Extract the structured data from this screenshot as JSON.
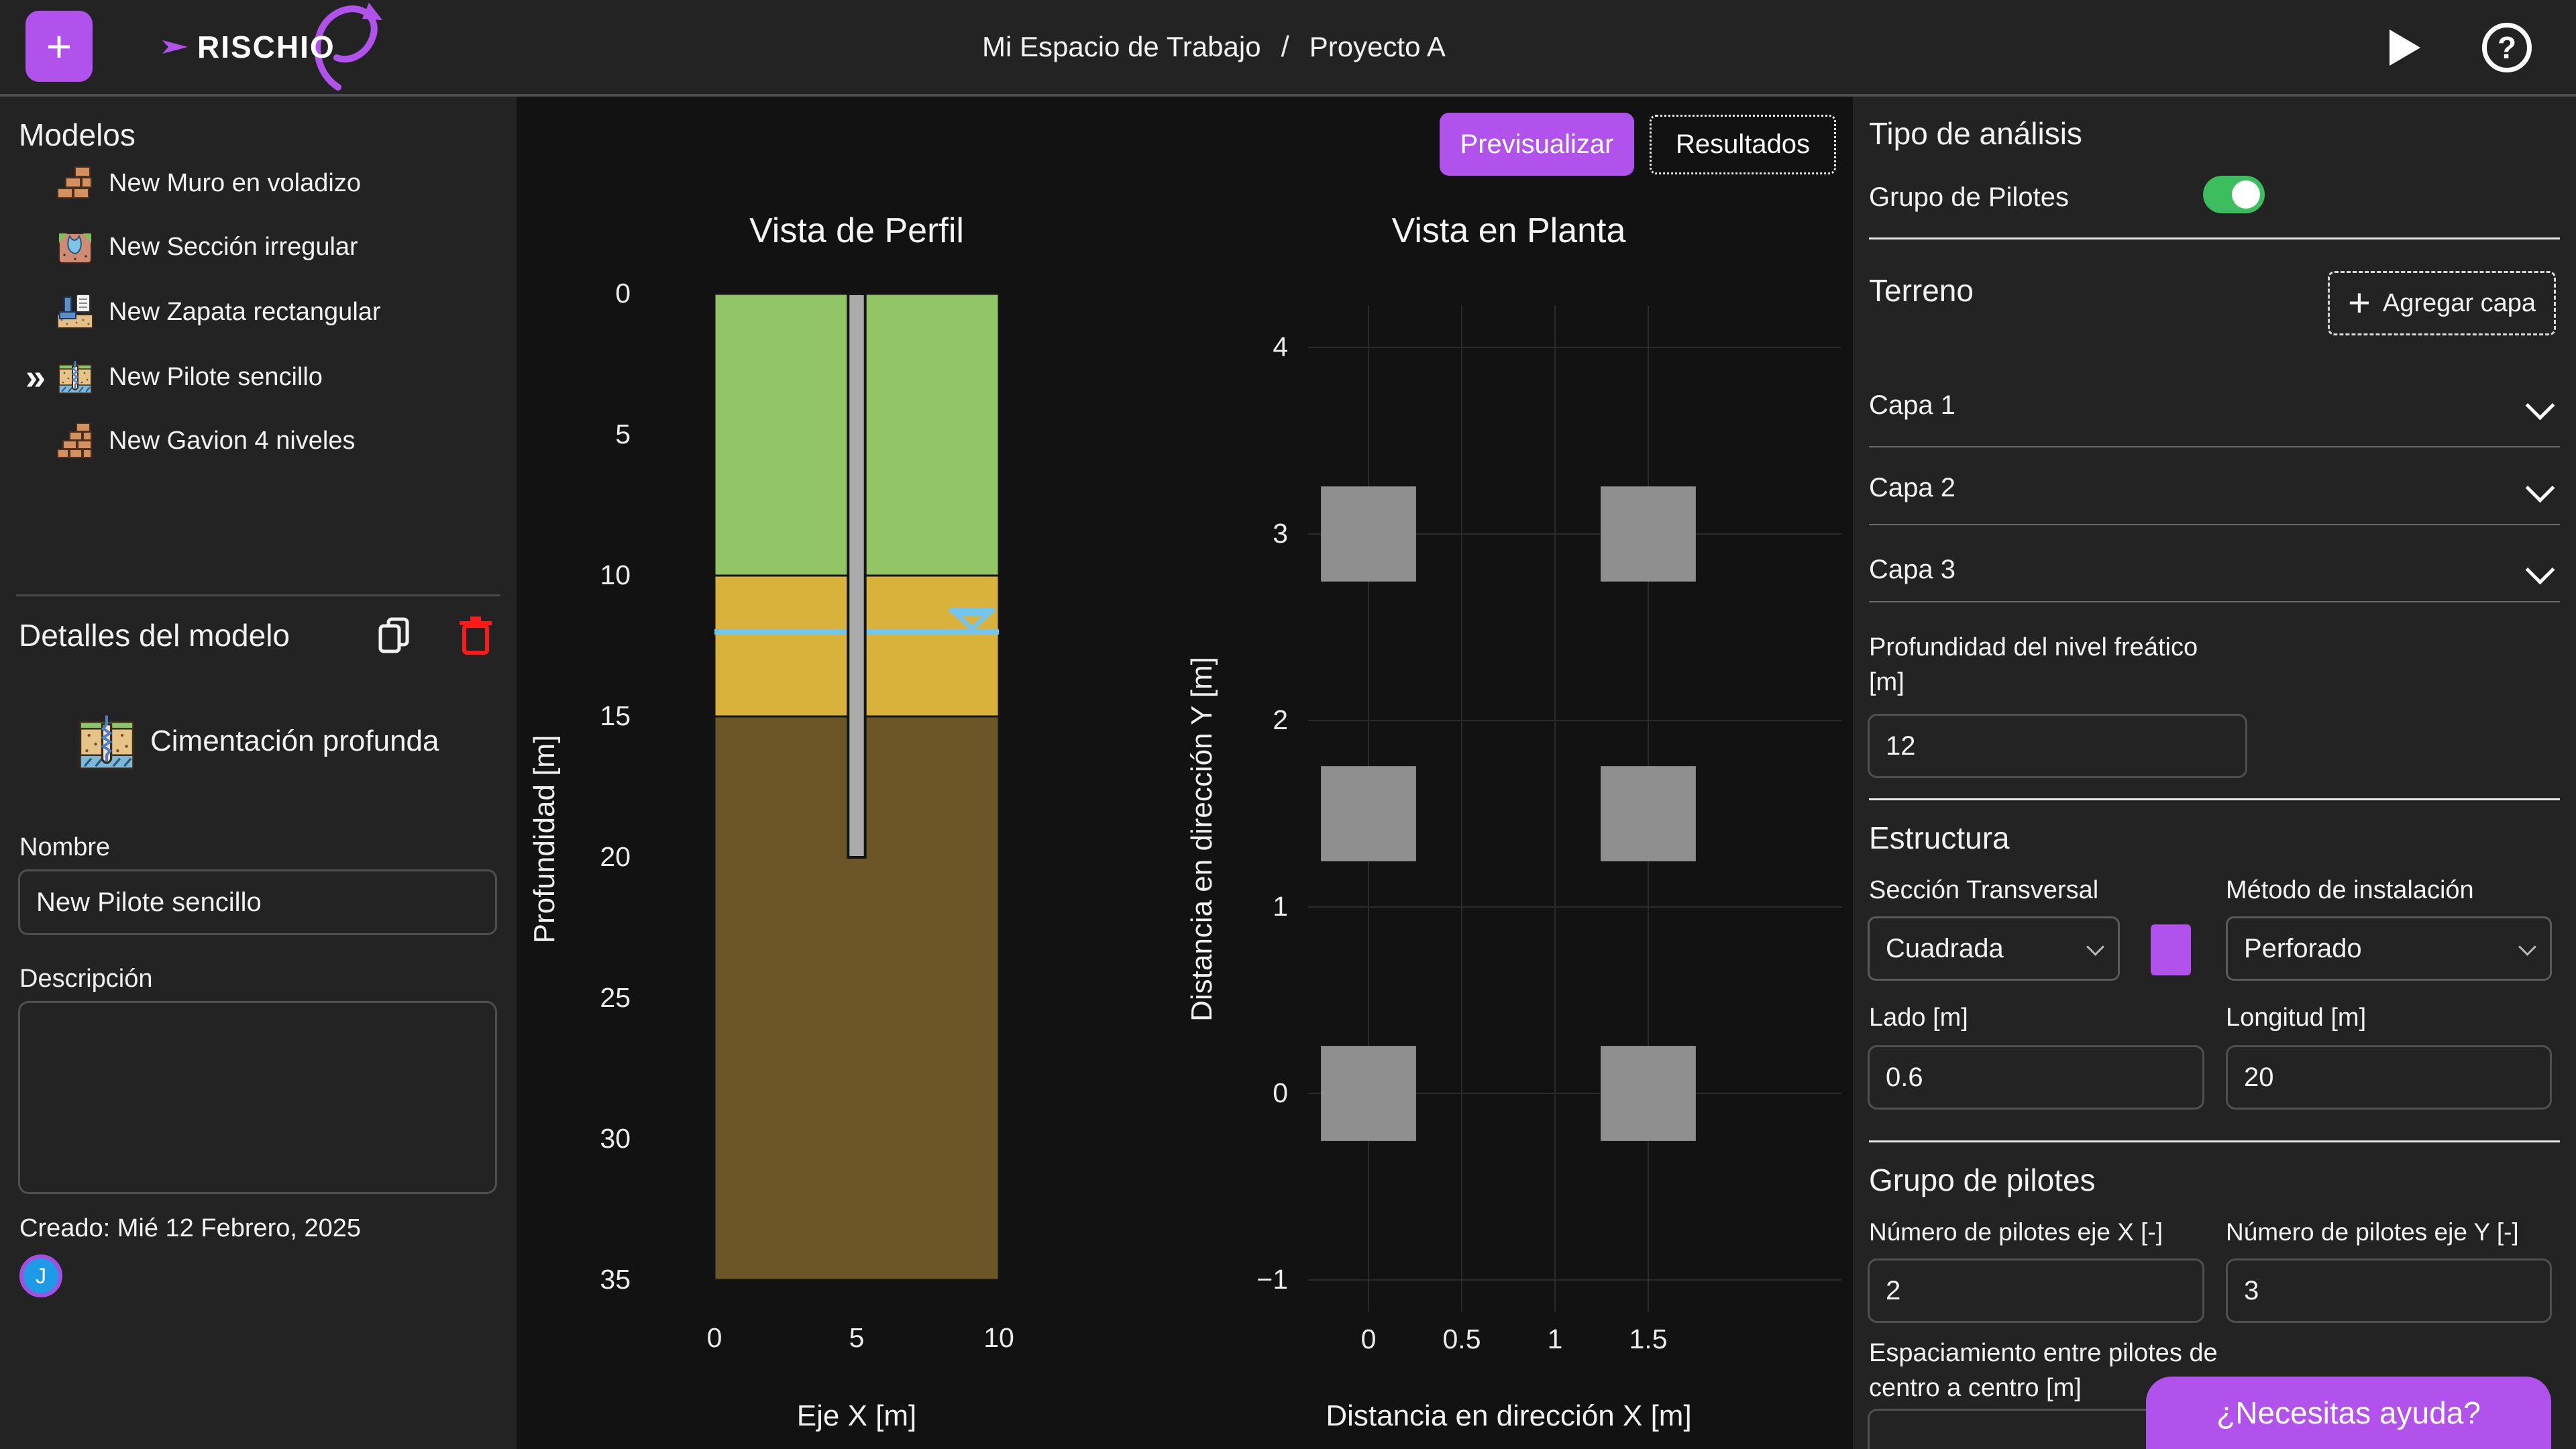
{
  "topbar": {
    "brand": "RISCHIO",
    "plus_label": "+",
    "breadcrumb": {
      "workspace": "Mi Espacio de Trabajo",
      "separator": "/",
      "project": "Proyecto A"
    }
  },
  "sidebar": {
    "title": "Modelos",
    "selected_marker": "»",
    "models": [
      {
        "label": "New Muro en voladizo",
        "icon": "brick-wall-icon"
      },
      {
        "label": "New Sección irregular",
        "icon": "irregular-section-icon"
      },
      {
        "label": "New Zapata rectangular",
        "icon": "footing-icon"
      },
      {
        "label": "New Pilote sencillo",
        "icon": "pile-icon",
        "selected": true
      },
      {
        "label": "New Gavion 4 niveles",
        "icon": "gabion-icon"
      }
    ],
    "details": {
      "title": "Detalles del modelo",
      "model_type": "Cimentación profunda",
      "name_label": "Nombre",
      "name_value": "New Pilote sencillo",
      "description_label": "Descripción",
      "description_value": "",
      "created": "Creado: Mié 12 Febrero, 2025",
      "avatar_initial": "J"
    }
  },
  "canvas": {
    "preview_button": "Previsualizar",
    "results_button": "Resultados"
  },
  "right_panel": {
    "analysis": {
      "title": "Tipo de análisis",
      "toggle_label": "Grupo de Pilotes",
      "toggle_on": true
    },
    "terrain": {
      "title": "Terreno",
      "add_layer_button": "Agregar capa",
      "layers": [
        "Capa 1",
        "Capa 2",
        "Capa 3"
      ],
      "water_depth_label_line1": "Profundidad del nivel freático",
      "water_depth_label_line2": "[m]",
      "water_depth_value": "12"
    },
    "structure": {
      "title": "Estructura",
      "cross_section_label": "Sección Transversal",
      "cross_section_value": "Cuadrada",
      "section_color": "#b252ec",
      "install_method_label": "Método de instalación",
      "install_method_value": "Perforado",
      "side_label": "Lado [m]",
      "side_value": "0.6",
      "length_label": "Longitud [m]",
      "length_value": "20"
    },
    "pile_group": {
      "title": "Grupo de pilotes",
      "nx_label": "Número de pilotes eje X [-]",
      "nx_value": "2",
      "ny_label": "Número de pilotes eje Y [-]",
      "ny_value": "3",
      "spacing_label_line1": "Espaciamiento entre pilotes de",
      "spacing_label_line2": "centro a centro [m]"
    }
  },
  "help_button": "¿Necesitas ayuda?",
  "colors": {
    "accent": "#b252ec",
    "toggle_on": "#3cbd5e",
    "delete": "#ff1a1a",
    "water": "#74c5ee",
    "grid": "#2a2a2a",
    "tick_text": "#ececec"
  },
  "chart_data": [
    {
      "id": "profile",
      "type": "area",
      "title": "Vista de Perfil",
      "xlabel": "Eje X [m]",
      "ylabel": "Profundidad [m]",
      "xlim": [
        0,
        10
      ],
      "ylim_depth": [
        0,
        35
      ],
      "xticks": [
        0,
        5,
        10
      ],
      "yticks": [
        0,
        5,
        10,
        15,
        20,
        25,
        30,
        35
      ],
      "soil_layers": [
        {
          "name": "Capa 1",
          "from_depth": 0,
          "to_depth": 10,
          "color": "#92c566"
        },
        {
          "name": "Capa 2",
          "from_depth": 10,
          "to_depth": 15,
          "color": "#d9b23c"
        },
        {
          "name": "Capa 3",
          "from_depth": 15,
          "to_depth": 35,
          "color": "#6c5627"
        }
      ],
      "water_table_depth": 12,
      "pile": {
        "x_center": 5,
        "width": 0.6,
        "top_depth": 0,
        "tip_depth": 20,
        "color": "#ababab"
      }
    },
    {
      "id": "plan",
      "type": "scatter",
      "title": "Vista en Planta",
      "xlabel": "Distancia en dirección X [m]",
      "ylabel": "Distancia en dirección Y [m]",
      "xticks": [
        0,
        0.5,
        1,
        1.5
      ],
      "yticks": [
        -1,
        0,
        1,
        2,
        3,
        4
      ],
      "grid": true,
      "pile_size_m": 0.6,
      "pile_color": "#8f8f8f",
      "pile_positions": [
        [
          0,
          0
        ],
        [
          1.5,
          0
        ],
        [
          0,
          1.5
        ],
        [
          1.5,
          1.5
        ],
        [
          0,
          3
        ],
        [
          1.5,
          3
        ]
      ]
    }
  ]
}
